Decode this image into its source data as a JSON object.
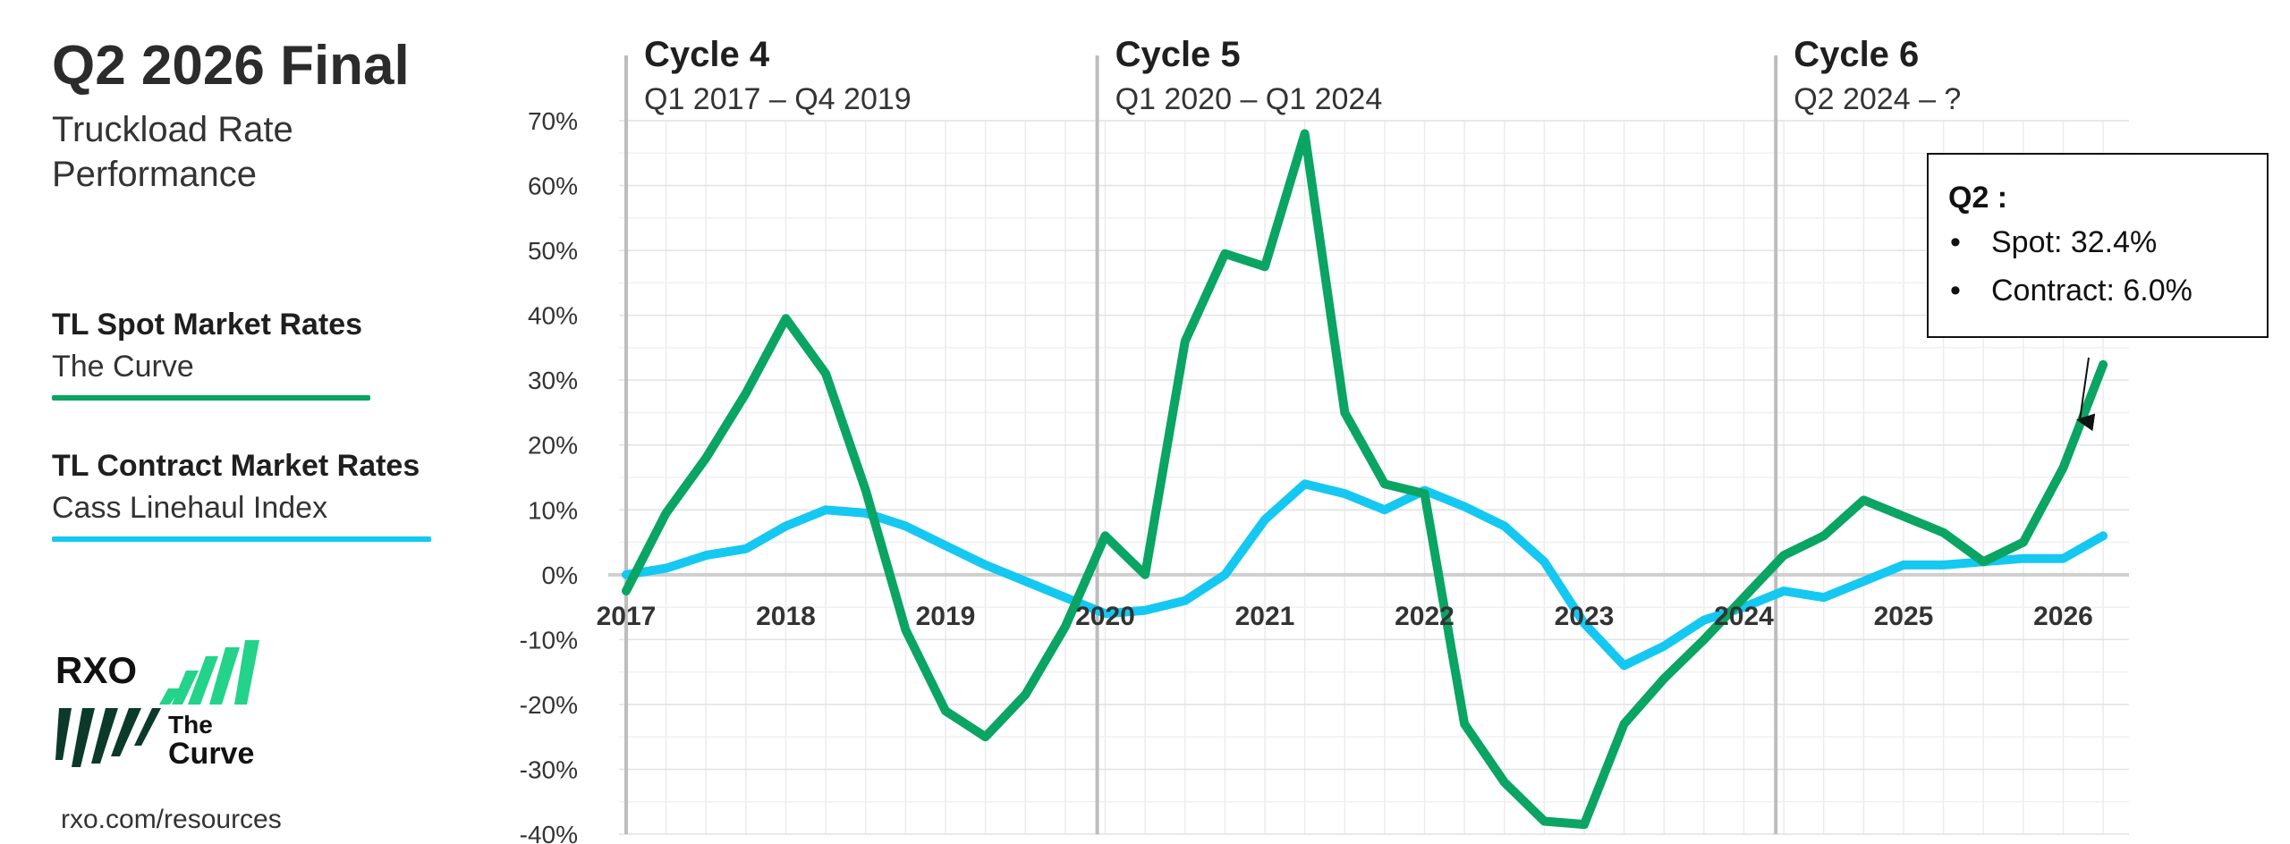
{
  "header": {
    "title": "Q2 2026 Final",
    "subtitle": "Truckload Rate Performance"
  },
  "legend": {
    "spot": {
      "label": "TL Spot Market Rates",
      "source": "The Curve",
      "color": "#0aa463"
    },
    "contract": {
      "label": "TL Contract Market Rates",
      "source": "Cass Linehaul Index",
      "color": "#14c8f2"
    }
  },
  "logo": {
    "brand": "RXO",
    "product_line1": "The",
    "product_line2": "Curve"
  },
  "footer": {
    "url": "rxo.com/resources"
  },
  "callout": {
    "title": "Q2 :",
    "bullet": "•",
    "spot_text": "Spot: 32.4%",
    "contract_text": "Contract: 6.0%"
  },
  "chart_data": {
    "type": "line",
    "title": "",
    "xlabel": "",
    "ylabel": "",
    "ylim": [
      -40,
      70
    ],
    "xlim": [
      2017,
      2026.4
    ],
    "y_ticks": [
      70,
      60,
      50,
      40,
      30,
      20,
      10,
      0,
      -10,
      -20,
      -30,
      -40
    ],
    "y_tick_labels": [
      "70%",
      "60%",
      "50%",
      "40%",
      "30%",
      "20%",
      "10%",
      "0%",
      "-10%",
      "-20%",
      "-30%",
      "-40%"
    ],
    "x_ticks": [
      2017,
      2018,
      2019,
      2020,
      2021,
      2022,
      2023,
      2024,
      2025,
      2026
    ],
    "x_tick_labels": [
      "2017",
      "2018",
      "2019",
      "2020",
      "2021",
      "2022",
      "2023",
      "2024",
      "2025",
      "2026"
    ],
    "grid": true,
    "legend_position": "left",
    "cycles": [
      {
        "name": "Cycle 4",
        "range": "Q1 2017 – Q4 2019",
        "start": 2017.0
      },
      {
        "name": "Cycle 5",
        "range": "Q1 2020 – Q1 2024",
        "start": 2019.95
      },
      {
        "name": "Cycle 6",
        "range": "Q2 2024 – ?",
        "start": 2024.2
      }
    ],
    "series": [
      {
        "name": "TL Spot Market Rates",
        "color": "#0aa463",
        "points": [
          [
            2017.0,
            -2.5
          ],
          [
            2017.25,
            9.5
          ],
          [
            2017.5,
            18
          ],
          [
            2017.75,
            28
          ],
          [
            2018.0,
            39.5
          ],
          [
            2018.25,
            31
          ],
          [
            2018.5,
            13
          ],
          [
            2018.75,
            -8.5
          ],
          [
            2019.0,
            -21
          ],
          [
            2019.25,
            -25
          ],
          [
            2019.5,
            -18.5
          ],
          [
            2019.75,
            -8
          ],
          [
            2020.0,
            6
          ],
          [
            2020.25,
            0
          ],
          [
            2020.5,
            36
          ],
          [
            2020.75,
            49.5
          ],
          [
            2021.0,
            47.5
          ],
          [
            2021.25,
            68
          ],
          [
            2021.5,
            25
          ],
          [
            2021.75,
            14
          ],
          [
            2022.0,
            12.5
          ],
          [
            2022.25,
            -23
          ],
          [
            2022.5,
            -32
          ],
          [
            2022.75,
            -38
          ],
          [
            2023.0,
            -38.5
          ],
          [
            2023.25,
            -23
          ],
          [
            2023.5,
            -16
          ],
          [
            2023.75,
            -10
          ],
          [
            2024.0,
            -3.5
          ],
          [
            2024.25,
            3
          ],
          [
            2024.5,
            6
          ],
          [
            2024.75,
            11.5
          ],
          [
            2025.0,
            9
          ],
          [
            2025.25,
            6.5
          ],
          [
            2025.5,
            2
          ],
          [
            2025.75,
            5
          ],
          [
            2026.0,
            16.5
          ],
          [
            2026.25,
            32.4
          ]
        ]
      },
      {
        "name": "TL Contract Market Rates",
        "color": "#14c8f2",
        "points": [
          [
            2017.0,
            0
          ],
          [
            2017.25,
            1
          ],
          [
            2017.5,
            3
          ],
          [
            2017.75,
            4
          ],
          [
            2018.0,
            7.5
          ],
          [
            2018.25,
            10
          ],
          [
            2018.5,
            9.5
          ],
          [
            2018.75,
            7.5
          ],
          [
            2019.0,
            4.5
          ],
          [
            2019.25,
            1.5
          ],
          [
            2019.5,
            -1
          ],
          [
            2019.75,
            -3.5
          ],
          [
            2020.0,
            -6
          ],
          [
            2020.25,
            -5.5
          ],
          [
            2020.5,
            -4
          ],
          [
            2020.75,
            0
          ],
          [
            2021.0,
            8.5
          ],
          [
            2021.25,
            14
          ],
          [
            2021.5,
            12.5
          ],
          [
            2021.75,
            10
          ],
          [
            2022.0,
            13
          ],
          [
            2022.25,
            10.5
          ],
          [
            2022.5,
            7.5
          ],
          [
            2022.75,
            2
          ],
          [
            2023.0,
            -7.5
          ],
          [
            2023.25,
            -14
          ],
          [
            2023.5,
            -11
          ],
          [
            2023.75,
            -7
          ],
          [
            2024.0,
            -5
          ],
          [
            2024.25,
            -2.5
          ],
          [
            2024.5,
            -3.5
          ],
          [
            2024.75,
            -1
          ],
          [
            2025.0,
            1.5
          ],
          [
            2025.25,
            1.5
          ],
          [
            2025.5,
            2
          ],
          [
            2025.75,
            2.5
          ],
          [
            2026.0,
            2.5
          ],
          [
            2026.25,
            6.0
          ]
        ]
      }
    ]
  }
}
